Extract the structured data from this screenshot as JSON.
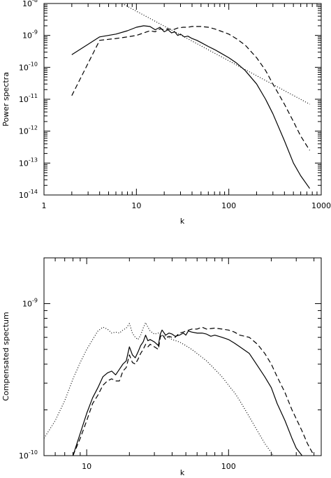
{
  "chart_data": [
    {
      "type": "line",
      "xlabel": "k",
      "ylabel": "Power spectra",
      "xscale": "log",
      "yscale": "log",
      "xlim": [
        1,
        1000
      ],
      "ylim": [
        1e-14,
        1e-08
      ],
      "xtick_values": [
        1,
        10,
        100,
        1000
      ],
      "xtick_labels": [
        "1",
        "10",
        "100",
        "1000"
      ],
      "ytick_values": [
        1e-08,
        1e-09,
        1e-10,
        1e-11,
        1e-12,
        1e-13,
        1e-14
      ],
      "ytick_labels": [
        {
          "base": "10",
          "exp": "-8"
        },
        {
          "base": "10",
          "exp": "-9"
        },
        {
          "base": "10",
          "exp": "-10"
        },
        {
          "base": "10",
          "exp": "-11"
        },
        {
          "base": "10",
          "exp": "-12"
        },
        {
          "base": "10",
          "exp": "-13"
        },
        {
          "base": "10",
          "exp": "-14"
        }
      ],
      "series": [
        {
          "style": "solid",
          "x": [
            2,
            4,
            6,
            8,
            10,
            12,
            14,
            16,
            18,
            20,
            22,
            24,
            26,
            28,
            30,
            33,
            36,
            40,
            45,
            50,
            60,
            70,
            80,
            100,
            120,
            150,
            200,
            250,
            300,
            400,
            500,
            600,
            750
          ],
          "y": [
            2.5e-10,
            9e-10,
            1.1e-09,
            1.4e-09,
            1.8e-09,
            2e-09,
            1.9e-09,
            1.5e-09,
            1.8e-09,
            1.3e-09,
            1.5e-09,
            1.2e-09,
            1.3e-09,
            1e-09,
            1.1e-09,
            9e-10,
            9.5e-10,
            8e-10,
            7e-10,
            6e-10,
            4.5e-10,
            3.6e-10,
            2.9e-10,
            2e-10,
            1.4e-10,
            8e-11,
            3e-11,
            1e-11,
            3.5e-12,
            5e-13,
            1e-13,
            4e-14,
            1.6e-14
          ]
        },
        {
          "style": "dashed",
          "x": [
            2,
            4,
            6,
            8,
            10,
            12,
            14,
            16,
            18,
            20,
            22,
            25,
            28,
            32,
            36,
            40,
            50,
            60,
            70,
            80,
            100,
            120,
            150,
            200,
            250,
            300,
            400,
            500,
            600,
            750
          ],
          "y": [
            1.3e-11,
            7e-10,
            8e-10,
            9e-10,
            1e-09,
            1.2e-09,
            1.4e-09,
            1.3e-09,
            1.6e-09,
            1.5e-09,
            1.6e-09,
            1.5e-09,
            1.7e-09,
            1.8e-09,
            1.8e-09,
            1.9e-09,
            1.9e-09,
            1.8e-09,
            1.6e-09,
            1.4e-09,
            1.1e-09,
            8e-10,
            5e-10,
            2e-10,
            8e-11,
            3e-11,
            7e-12,
            2e-12,
            7e-13,
            2.5e-13
          ]
        },
        {
          "style": "dotted",
          "x": [
            7,
            750
          ],
          "y": [
            1e-08,
            7e-12
          ]
        }
      ]
    },
    {
      "type": "line",
      "xlabel": "k",
      "ylabel": "Compensated spectum",
      "xscale": "log",
      "yscale": "log",
      "xlim": [
        5,
        450
      ],
      "ylim": [
        1e-10,
        2e-09
      ],
      "xtick_values": [
        10,
        100
      ],
      "xtick_labels": [
        "10",
        "100"
      ],
      "ytick_values": [
        1e-09,
        1e-10
      ],
      "ytick_labels": [
        {
          "base": "10",
          "exp": "-9"
        },
        {
          "base": "10",
          "exp": "-10"
        }
      ],
      "series": [
        {
          "style": "solid",
          "x": [
            8,
            9,
            10,
            11,
            12,
            13,
            14,
            15,
            16,
            17,
            18,
            19,
            20,
            21,
            22,
            23,
            24,
            25,
            26,
            27,
            28,
            30,
            32,
            33,
            34,
            36,
            38,
            40,
            42,
            45,
            48,
            50,
            52,
            55,
            60,
            65,
            70,
            75,
            80,
            90,
            100,
            110,
            120,
            140,
            160,
            180,
            200,
            220,
            250,
            280,
            300,
            330,
            360
          ],
          "y": [
            1e-10,
            1.4e-10,
            1.9e-10,
            2.4e-10,
            2.8e-10,
            3.3e-10,
            3.5e-10,
            3.6e-10,
            3.4e-10,
            3.7e-10,
            4e-10,
            4.2e-10,
            5.2e-10,
            4.6e-10,
            4.4e-10,
            4.8e-10,
            5.3e-10,
            5.6e-10,
            6.2e-10,
            5.7e-10,
            5.8e-10,
            5.6e-10,
            5.3e-10,
            6.3e-10,
            6.7e-10,
            6.2e-10,
            6.4e-10,
            6.3e-10,
            6.1e-10,
            6.2e-10,
            6.4e-10,
            6.2e-10,
            6.6e-10,
            6.5e-10,
            6.4e-10,
            6.4e-10,
            6.3e-10,
            6.1e-10,
            6.2e-10,
            6e-10,
            5.8e-10,
            5.5e-10,
            5.2e-10,
            4.7e-10,
            3.9e-10,
            3.3e-10,
            2.8e-10,
            2.2e-10,
            1.7e-10,
            1.3e-10,
            1.12e-10,
            1e-10,
            9e-11
          ]
        },
        {
          "style": "dashed",
          "x": [
            8,
            9,
            10,
            11,
            12,
            13,
            14,
            15,
            16,
            17,
            18,
            19,
            20,
            21,
            22,
            23,
            24,
            25,
            26,
            27,
            28,
            30,
            32,
            33,
            34,
            36,
            38,
            40,
            42,
            45,
            48,
            50,
            55,
            60,
            65,
            70,
            80,
            90,
            100,
            110,
            120,
            140,
            160,
            180,
            200,
            220,
            250,
            280,
            300,
            330,
            360,
            400
          ],
          "y": [
            1e-10,
            1.3e-10,
            1.7e-10,
            2.2e-10,
            2.5e-10,
            2.9e-10,
            3.1e-10,
            3.2e-10,
            3.1e-10,
            3.1e-10,
            3.6e-10,
            3.8e-10,
            4.6e-10,
            4.1e-10,
            4e-10,
            4.3e-10,
            4.7e-10,
            5e-10,
            5.4e-10,
            5.2e-10,
            5.4e-10,
            5.2e-10,
            5e-10,
            6e-10,
            6.3e-10,
            5.8e-10,
            6.1e-10,
            6e-10,
            6e-10,
            6.4e-10,
            6.5e-10,
            6.6e-10,
            6.8e-10,
            6.8e-10,
            7e-10,
            6.8e-10,
            6.9e-10,
            6.8e-10,
            6.7e-10,
            6.5e-10,
            6.2e-10,
            6e-10,
            5.4e-10,
            4.7e-10,
            4e-10,
            3.3e-10,
            2.6e-10,
            2e-10,
            1.75e-10,
            1.45e-10,
            1.2e-10,
            1e-10
          ]
        },
        {
          "style": "dotted",
          "x": [
            5,
            6,
            7,
            8,
            9,
            10,
            11,
            12,
            13,
            14,
            15,
            16,
            17,
            18,
            19,
            20,
            21,
            22,
            23,
            24,
            25,
            26,
            27,
            28,
            30,
            32,
            34,
            36,
            38,
            40,
            45,
            50,
            55,
            60,
            70,
            80,
            90,
            100,
            110,
            120,
            140,
            160,
            180,
            200,
            210,
            220
          ],
          "y": [
            1.3e-10,
            1.7e-10,
            2.3e-10,
            3.2e-10,
            4.1e-10,
            5e-10,
            5.8e-10,
            6.6e-10,
            7e-10,
            6.8e-10,
            6.4e-10,
            6.5e-10,
            6.4e-10,
            6.7e-10,
            6.9e-10,
            7.4e-10,
            6.4e-10,
            6e-10,
            5.8e-10,
            6.2e-10,
            6.9e-10,
            7.5e-10,
            7e-10,
            6.6e-10,
            6.3e-10,
            6.4e-10,
            6.2e-10,
            6.1e-10,
            6e-10,
            5.8e-10,
            5.6e-10,
            5.3e-10,
            5e-10,
            4.7e-10,
            4.2e-10,
            3.7e-10,
            3.3e-10,
            2.9e-10,
            2.6e-10,
            2.3e-10,
            1.8e-10,
            1.45e-10,
            1.2e-10,
            1.05e-10,
            9.8e-11,
            9.2e-11
          ]
        }
      ]
    }
  ]
}
